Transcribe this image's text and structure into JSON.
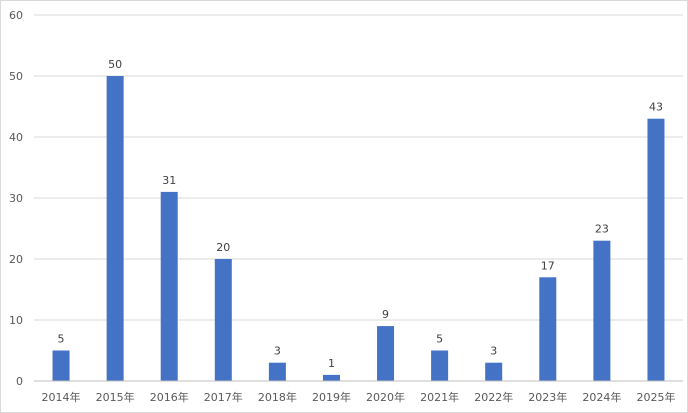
{
  "chart_data": {
    "type": "bar",
    "title": "",
    "xlabel": "",
    "ylabel": "",
    "categories": [
      "2014年",
      "2015年",
      "2016年",
      "2017年",
      "2018年",
      "2019年",
      "2020年",
      "2021年",
      "2022年",
      "2023年",
      "2024年",
      "2025年"
    ],
    "values": [
      5,
      50,
      31,
      20,
      3,
      1,
      9,
      5,
      3,
      17,
      23,
      43
    ],
    "ylim": [
      0,
      60
    ],
    "yticks": [
      0,
      10,
      20,
      30,
      40,
      50,
      60
    ],
    "grid": true,
    "legend": "none",
    "data_labels": true,
    "bar_color": "#4472C4"
  }
}
